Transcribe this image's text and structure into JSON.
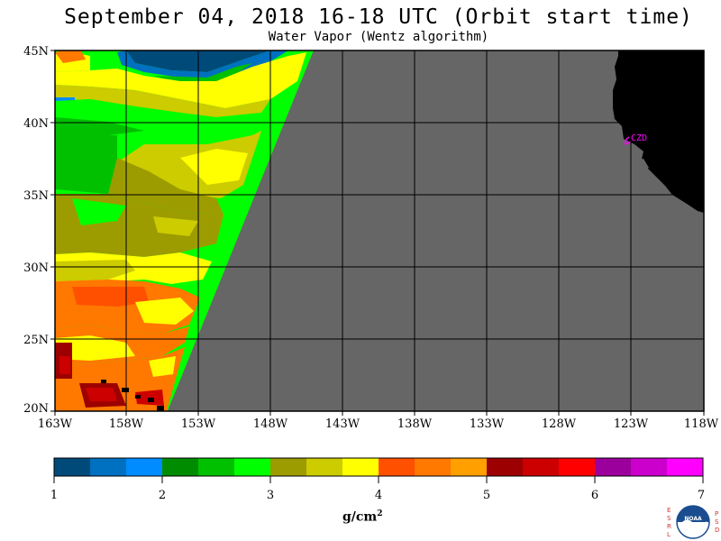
{
  "header": {
    "title": "September 04, 2018  16-18 UTC  (Orbit start time)",
    "subtitle": "Water Vapor (Wentz algorithm)"
  },
  "map": {
    "lat_labels": [
      "45N",
      "40N",
      "35N",
      "30N",
      "25N",
      "20N"
    ],
    "lon_labels": [
      "163W",
      "158W",
      "153W",
      "148W",
      "143W",
      "138W",
      "133W",
      "128W",
      "123W",
      "118W"
    ],
    "station_label": "CZD",
    "colors": {
      "no_data": "#666666",
      "land": "#000000",
      "grid": "#000000",
      "station": "#ff00ff"
    }
  },
  "colorbar": {
    "tick_labels": [
      "1",
      "2",
      "3",
      "4",
      "5",
      "6",
      "7"
    ],
    "unit": "g/cm",
    "unit_sup": "2",
    "colors": [
      "#004a7a",
      "#0070c0",
      "#008cff",
      "#008c00",
      "#00c000",
      "#00ff00",
      "#9c9c00",
      "#cccc00",
      "#ffff00",
      "#ff5000",
      "#ff7800",
      "#ffa000",
      "#9c0000",
      "#cc0000",
      "#ff0000",
      "#9c009c",
      "#cc00cc",
      "#ff00ff"
    ]
  },
  "logo": {
    "left_letters": "ESRL",
    "right_letters": "PSD",
    "center_text": "NOAA"
  }
}
